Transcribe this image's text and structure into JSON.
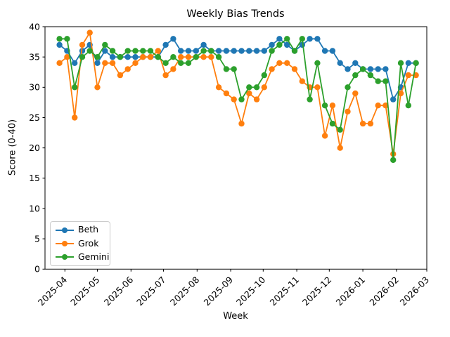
{
  "figure": {
    "title": "Weekly Bias Trends",
    "xlabel": "Week",
    "ylabel": "Score (0-40)"
  },
  "chart_data": {
    "type": "line",
    "title": "Weekly Bias Trends",
    "xlabel": "Week",
    "ylabel": "Score (0-40)",
    "ylim": [
      0,
      40
    ],
    "yticks": [
      0,
      5,
      10,
      15,
      20,
      25,
      30,
      35,
      40
    ],
    "xtick_labels": [
      "2025-04",
      "2025-05",
      "2025-06",
      "2025-07",
      "2025-08",
      "2025-09",
      "2025-10",
      "2025-11",
      "2025-12",
      "2026-01",
      "2026-02",
      "2026-03"
    ],
    "grid": false,
    "legend": {
      "position": "lower left",
      "entries": [
        "Beth",
        "Grok",
        "Gemini"
      ]
    },
    "x_weekly_dates": [
      "2025-03-27",
      "2025-04-03",
      "2025-04-10",
      "2025-04-17",
      "2025-04-24",
      "2025-05-01",
      "2025-05-08",
      "2025-05-15",
      "2025-05-22",
      "2025-05-29",
      "2025-06-05",
      "2025-06-12",
      "2025-06-19",
      "2025-06-26",
      "2025-07-03",
      "2025-07-10",
      "2025-07-17",
      "2025-07-24",
      "2025-07-31",
      "2025-08-07",
      "2025-08-14",
      "2025-08-21",
      "2025-08-28",
      "2025-09-04",
      "2025-09-11",
      "2025-09-18",
      "2025-09-25",
      "2025-10-02",
      "2025-10-09",
      "2025-10-16",
      "2025-10-23",
      "2025-10-30",
      "2025-11-06",
      "2025-11-13",
      "2025-11-20",
      "2025-11-27",
      "2025-12-04",
      "2025-12-11",
      "2025-12-18",
      "2025-12-25",
      "2026-01-01",
      "2026-01-08",
      "2026-01-15",
      "2026-01-22",
      "2026-01-29",
      "2026-02-05",
      "2026-02-12",
      "2026-02-19"
    ],
    "series": [
      {
        "name": "Beth",
        "color": "#1f77b4",
        "values": [
          37,
          36,
          34,
          36,
          37,
          34,
          36,
          35,
          35,
          35,
          35,
          35,
          35,
          35,
          37,
          38,
          36,
          36,
          36,
          37,
          36,
          36,
          36,
          36,
          36,
          36,
          36,
          36,
          37,
          38,
          37,
          36,
          37,
          38,
          38,
          36,
          36,
          34,
          33,
          34,
          33,
          33,
          33,
          33,
          28,
          30,
          34,
          34
        ]
      },
      {
        "name": "Grok",
        "color": "#ff7f0e",
        "values": [
          34,
          35,
          25,
          37,
          39,
          30,
          34,
          34,
          32,
          33,
          34,
          35,
          35,
          36,
          32,
          33,
          35,
          35,
          35,
          35,
          35,
          30,
          29,
          28,
          24,
          29,
          28,
          30,
          33,
          34,
          34,
          33,
          31,
          30,
          30,
          22,
          27,
          20,
          26,
          29,
          24,
          24,
          27,
          27,
          19,
          29,
          32,
          32
        ]
      },
      {
        "name": "Gemini",
        "color": "#2ca02c",
        "values": [
          38,
          38,
          30,
          35,
          36,
          35,
          37,
          36,
          35,
          36,
          36,
          36,
          36,
          35,
          34,
          35,
          34,
          34,
          35,
          36,
          36,
          35,
          33,
          33,
          28,
          30,
          30,
          32,
          36,
          37,
          38,
          36,
          38,
          28,
          34,
          27,
          24,
          23,
          30,
          32,
          33,
          32,
          31,
          31,
          18,
          34,
          27,
          34
        ]
      }
    ]
  }
}
